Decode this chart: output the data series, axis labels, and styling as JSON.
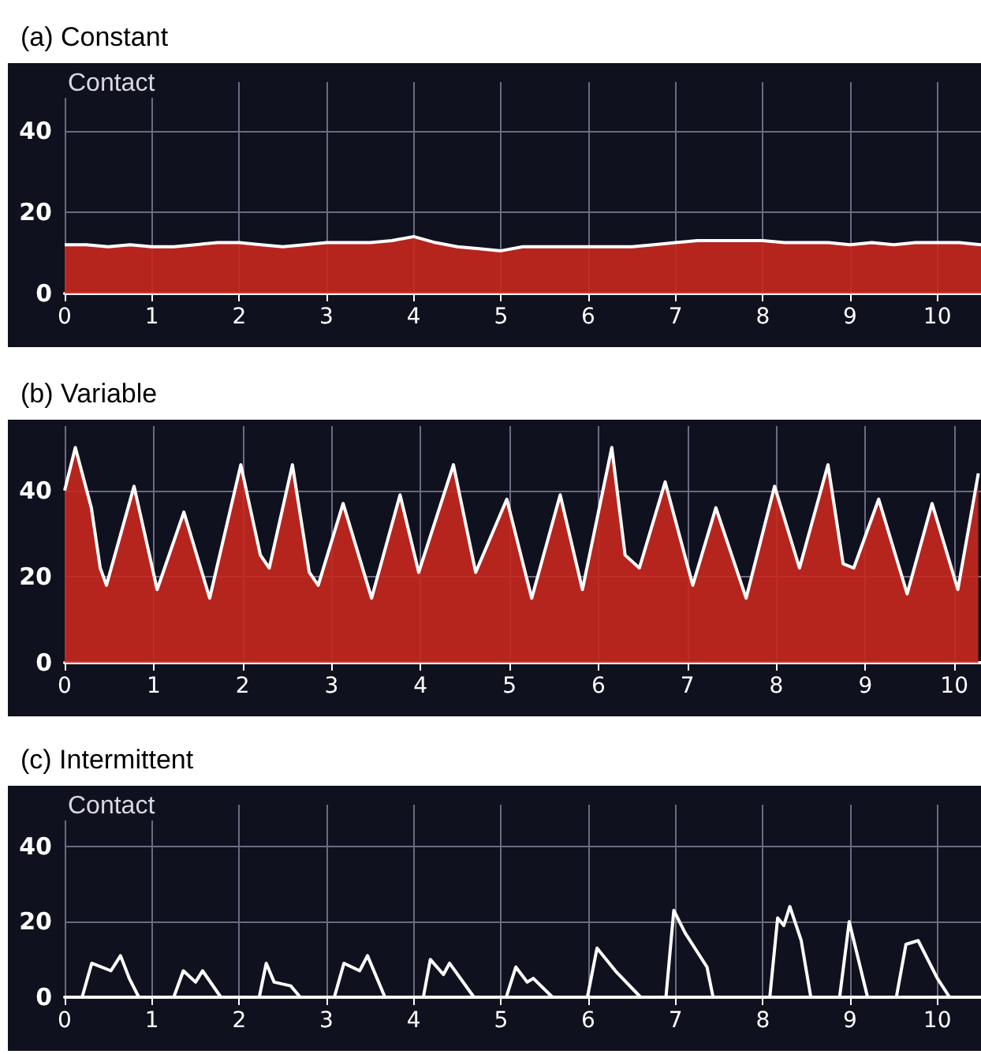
{
  "chart_data": [
    {
      "type": "area",
      "title": "(a) Constant",
      "annotations": [
        "Contact"
      ],
      "xlim": [
        0,
        10.5
      ],
      "xticks": [
        0,
        1,
        2,
        3,
        4,
        5,
        6,
        7,
        8,
        9,
        10
      ],
      "ylim": [
        0,
        52
      ],
      "yticks": [
        0,
        20,
        40
      ],
      "grid": true,
      "series": [
        {
          "color": "#c8281e",
          "x": [
            0,
            0.25,
            0.5,
            0.75,
            1,
            1.25,
            1.5,
            1.75,
            2,
            2.25,
            2.5,
            2.75,
            3,
            3.25,
            3.5,
            3.75,
            4,
            4.25,
            4.5,
            4.75,
            5,
            5.25,
            5.5,
            5.75,
            6,
            6.25,
            6.5,
            6.75,
            7,
            7.25,
            7.5,
            7.75,
            8,
            8.25,
            8.5,
            8.75,
            9,
            9.25,
            9.5,
            9.75,
            10,
            10.25,
            10.5
          ],
          "values": [
            12,
            12,
            11.5,
            12,
            11.5,
            11.5,
            12,
            12.5,
            12.5,
            12,
            11.5,
            12,
            12.5,
            12.5,
            12.5,
            13,
            14,
            12.5,
            11.5,
            11,
            10.5,
            11.5,
            11.5,
            11.5,
            11.5,
            11.5,
            11.5,
            12,
            12.5,
            13,
            13,
            13,
            13,
            12.5,
            12.5,
            12.5,
            12,
            12.5,
            12,
            12.5,
            12.5,
            12.5,
            12
          ]
        }
      ]
    },
    {
      "type": "area",
      "title": "(b) Variable",
      "xlim": [
        0,
        10.3
      ],
      "xticks": [
        0,
        1,
        2,
        3,
        4,
        5,
        6,
        7,
        8,
        9,
        10
      ],
      "ylim": [
        0,
        55
      ],
      "yticks": [
        0,
        20,
        40
      ],
      "grid": true,
      "series": [
        {
          "color": "#c8281e",
          "x": [
            0,
            0.12,
            0.3,
            0.4,
            0.47,
            0.78,
            1.04,
            1.34,
            1.63,
            1.98,
            2.2,
            2.3,
            2.56,
            2.75,
            2.85,
            3.13,
            3.45,
            3.77,
            3.98,
            4.37,
            4.62,
            4.97,
            5.25,
            5.57,
            5.82,
            6.15,
            6.3,
            6.46,
            6.75,
            7.06,
            7.32,
            7.66,
            7.98,
            8.26,
            8.58,
            8.75,
            8.87,
            9.15,
            9.47,
            9.75,
            10.04,
            10.27
          ],
          "values": [
            40,
            50,
            36,
            22,
            18,
            41,
            17,
            35,
            15,
            46,
            25,
            22,
            46,
            21,
            18,
            37,
            15,
            39,
            21,
            46,
            21,
            38,
            15,
            39,
            17,
            50,
            25,
            22,
            42,
            18,
            36,
            15,
            41,
            22,
            46,
            23,
            22,
            38,
            16,
            37,
            17,
            44
          ]
        }
      ]
    },
    {
      "type": "line",
      "title": "(c) Intermittent",
      "annotations": [
        "Contact"
      ],
      "xlim": [
        0,
        10.5
      ],
      "xticks": [
        0,
        1,
        2,
        3,
        4,
        5,
        6,
        7,
        8,
        9,
        10
      ],
      "ylim": [
        0,
        51
      ],
      "yticks": [
        0,
        20,
        40
      ],
      "grid": true,
      "series": [
        {
          "color": "#ffffff",
          "x": [
            0,
            0.2,
            0.31,
            0.53,
            0.64,
            0.74,
            0.85,
            1.25,
            1.36,
            1.5,
            1.58,
            1.79,
            2.23,
            2.31,
            2.4,
            2.59,
            2.7,
            3.09,
            3.2,
            3.38,
            3.47,
            3.67,
            4.11,
            4.19,
            4.34,
            4.41,
            4.69,
            5.06,
            5.17,
            5.3,
            5.37,
            5.59,
            5.99,
            6.1,
            6.31,
            6.6,
            6.89,
            6.98,
            7.11,
            7.36,
            7.43,
            8.08,
            8.17,
            8.24,
            8.31,
            8.44,
            8.55,
            8.88,
            8.99,
            9.2,
            9.53,
            9.64,
            9.78,
            10,
            10.14,
            10.5
          ],
          "values": [
            0,
            0,
            9,
            7,
            11,
            5,
            0,
            0,
            7,
            4,
            7,
            0,
            0,
            9,
            4,
            3,
            0,
            0,
            9,
            7,
            11,
            0,
            0,
            10,
            6,
            9,
            0,
            0,
            8,
            4,
            5,
            0,
            0,
            13,
            7,
            0,
            0,
            23,
            17,
            8,
            0,
            0,
            21,
            19,
            24,
            15,
            0,
            0,
            20,
            0,
            0,
            14,
            15,
            5,
            0,
            0
          ]
        }
      ]
    }
  ]
}
